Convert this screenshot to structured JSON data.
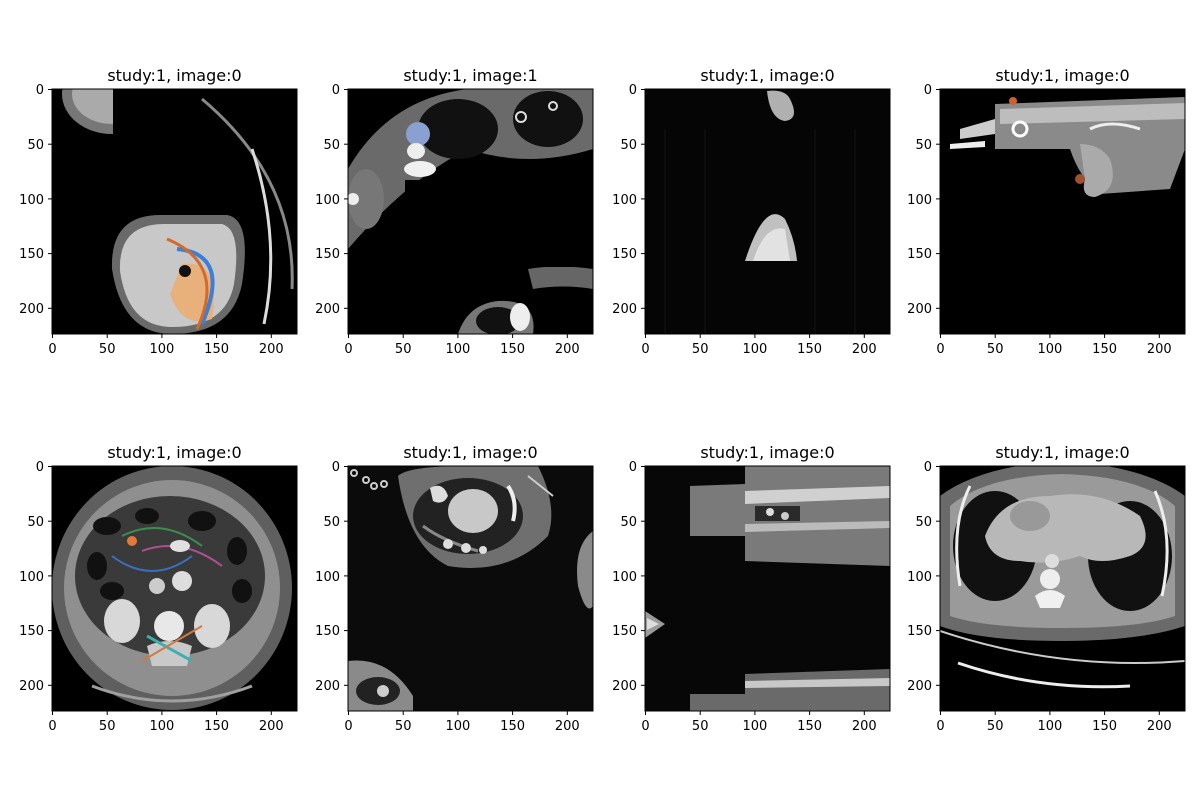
{
  "figure": {
    "ticks": [
      "0",
      "50",
      "100",
      "150",
      "200"
    ],
    "panels": [
      {
        "title": "study:1, image:0",
        "view": "axial-liver-masked"
      },
      {
        "title": "study:1, image:1",
        "view": "axial-chest-masked"
      },
      {
        "title": "study:1, image:0",
        "view": "dark-mostly-masked"
      },
      {
        "title": "study:1, image:0",
        "view": "sagittal-body-strip"
      },
      {
        "title": "study:1, image:0",
        "view": "axial-abdomen-kidneys"
      },
      {
        "title": "study:1, image:0",
        "view": "oblique-pelvis"
      },
      {
        "title": "study:1, image:0",
        "view": "coronal-stretched"
      },
      {
        "title": "study:1, image:0",
        "view": "axial-chest-heart"
      }
    ]
  }
}
